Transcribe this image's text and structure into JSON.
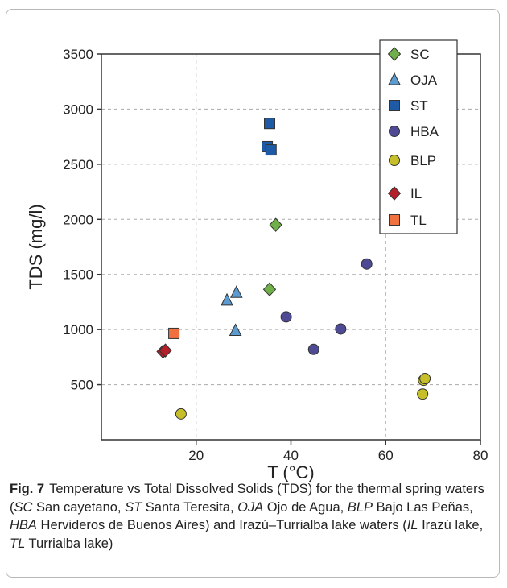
{
  "figure": {
    "label": "Fig. 7",
    "caption_segments": [
      {
        "t": "Temperature vs Total Dissolved Solids (TDS) for the thermal spring waters (",
        "i": false
      },
      {
        "t": "SC",
        "i": true
      },
      {
        "t": " San cayetano, ",
        "i": false
      },
      {
        "t": "ST",
        "i": true
      },
      {
        "t": " Santa Teresita, ",
        "i": false
      },
      {
        "t": "OJA",
        "i": true
      },
      {
        "t": " Ojo de Agua, ",
        "i": false
      },
      {
        "t": "BLP",
        "i": true
      },
      {
        "t": " Bajo Las Peñas, ",
        "i": false
      },
      {
        "t": "HBA",
        "i": true
      },
      {
        "t": " Hervideros de Buenos Aires) and Irazú–Turrialba lake waters (",
        "i": false
      },
      {
        "t": "IL",
        "i": true
      },
      {
        "t": " Irazú lake, ",
        "i": false
      },
      {
        "t": "TL",
        "i": true
      },
      {
        "t": " Turrialba lake)",
        "i": false
      }
    ]
  },
  "chart_data": {
    "type": "scatter",
    "xlabel": "T (°C)",
    "ylabel": "TDS (mg/l)",
    "xlim": [
      0,
      80
    ],
    "ylim": [
      0,
      3500
    ],
    "xticks": [
      20,
      40,
      60,
      80
    ],
    "yticks": [
      500,
      1000,
      1500,
      2000,
      2500,
      3000,
      3500
    ],
    "grid": true,
    "grid_style": "dashed",
    "legend_position": "top-right",
    "series": [
      {
        "name": "SC",
        "marker": "diamond",
        "color": "#6fb04a",
        "points": [
          [
            35.5,
            1365
          ],
          [
            36.8,
            1950
          ]
        ]
      },
      {
        "name": "OJA",
        "marker": "triangle",
        "color": "#5b9bd0",
        "points": [
          [
            26.5,
            1265
          ],
          [
            28.5,
            1335
          ],
          [
            28.3,
            990
          ]
        ]
      },
      {
        "name": "ST",
        "marker": "square",
        "color": "#1f5aa6",
        "points": [
          [
            35.5,
            2870
          ],
          [
            35.0,
            2660
          ],
          [
            35.8,
            2630
          ]
        ]
      },
      {
        "name": "HBA",
        "marker": "circle",
        "color": "#4f4a94",
        "points": [
          [
            56.0,
            1595
          ],
          [
            39.0,
            1115
          ],
          [
            50.5,
            1005
          ],
          [
            44.8,
            820
          ]
        ]
      },
      {
        "name": "BLP",
        "marker": "circle",
        "color": "#c7bf2a",
        "points": [
          [
            16.8,
            235
          ],
          [
            68.0,
            540
          ],
          [
            68.3,
            555
          ],
          [
            67.8,
            415
          ]
        ]
      },
      {
        "name": "IL",
        "marker": "diamond",
        "color": "#b3202a",
        "points": [
          [
            13.0,
            800
          ],
          [
            13.5,
            810
          ]
        ]
      },
      {
        "name": "TL",
        "marker": "square",
        "color": "#f07040",
        "points": [
          [
            15.3,
            965
          ]
        ]
      }
    ]
  }
}
